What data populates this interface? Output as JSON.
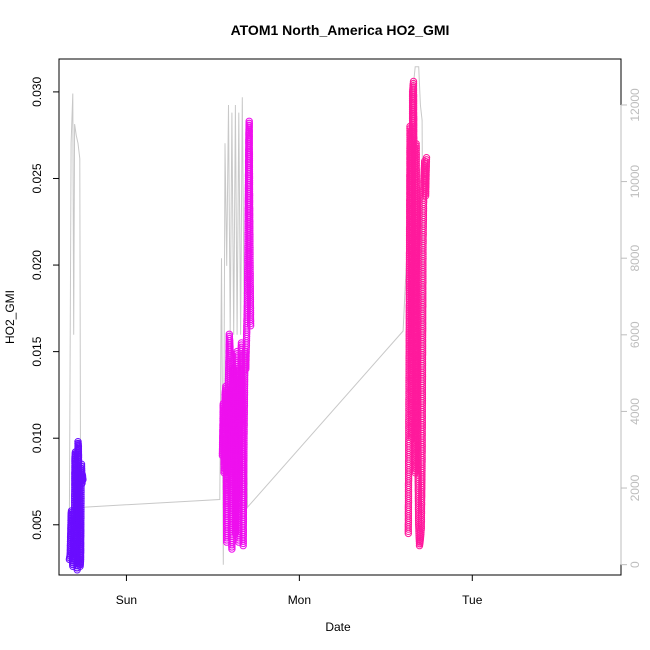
{
  "chart_data": {
    "type": "scatter",
    "title": "ATOM1 North_America HO2_GMI",
    "xlabel": "Date",
    "ylabel": "HO2_GMI",
    "x_ticks": [
      "Sun",
      "Mon",
      "Tue"
    ],
    "y_ticks": [
      "0.005",
      "0.010",
      "0.015",
      "0.020",
      "0.025",
      "0.030"
    ],
    "y_tick_values": [
      0.005,
      0.01,
      0.015,
      0.02,
      0.025,
      0.03
    ],
    "y2_ticks": [
      "0",
      "2000",
      "4000",
      "6000",
      "8000",
      "10000",
      "12000"
    ],
    "y2_tick_values": [
      0,
      2000,
      4000,
      6000,
      8000,
      10000,
      12000
    ],
    "xlim_days": [
      -0.39,
      2.86
    ],
    "ylim": [
      0.0021,
      0.0319
    ],
    "y2lim": [
      -270,
      13200
    ],
    "grid": false,
    "colors": {
      "purple": "#6a0dff",
      "magenta": "#ee10ee",
      "pink": "#ff1a9c",
      "altitude_line": "#c8c8c8",
      "axis": "#000000",
      "secondary_axis": "#bdbdbd"
    },
    "series": [
      {
        "color": "purple",
        "points": [
          [
            -0.33,
            0.003
          ],
          [
            -0.325,
            0.0033
          ],
          [
            -0.32,
            0.0055
          ],
          [
            -0.318,
            0.0058
          ],
          [
            -0.315,
            0.0035
          ],
          [
            -0.31,
            0.0026
          ],
          [
            -0.305,
            0.0029
          ],
          [
            -0.3,
            0.0045
          ],
          [
            -0.298,
            0.0088
          ],
          [
            -0.295,
            0.0092
          ],
          [
            -0.29,
            0.0068
          ],
          [
            -0.288,
            0.0035
          ],
          [
            -0.285,
            0.0024
          ],
          [
            -0.283,
            0.005
          ],
          [
            -0.28,
            0.0098
          ],
          [
            -0.278,
            0.0095
          ],
          [
            -0.275,
            0.0072
          ],
          [
            -0.27,
            0.0045
          ],
          [
            -0.268,
            0.0026
          ],
          [
            -0.265,
            0.003
          ],
          [
            -0.262,
            0.008
          ],
          [
            -0.26,
            0.0085
          ],
          [
            -0.257,
            0.0074
          ],
          [
            -0.255,
            0.0079
          ],
          [
            -0.252,
            0.0076
          ]
        ]
      },
      {
        "color": "magenta",
        "points": [
          [
            0.555,
            0.009
          ],
          [
            0.56,
            0.012
          ],
          [
            0.565,
            0.008
          ],
          [
            0.57,
            0.0125
          ],
          [
            0.575,
            0.013
          ],
          [
            0.58,
            0.004
          ],
          [
            0.585,
            0.011
          ],
          [
            0.59,
            0.0132
          ],
          [
            0.595,
            0.016
          ],
          [
            0.6,
            0.015
          ],
          [
            0.605,
            0.01
          ],
          [
            0.61,
            0.0036
          ],
          [
            0.615,
            0.0125
          ],
          [
            0.62,
            0.014
          ],
          [
            0.625,
            0.009
          ],
          [
            0.63,
            0.0045
          ],
          [
            0.635,
            0.011
          ],
          [
            0.64,
            0.015
          ],
          [
            0.645,
            0.012
          ],
          [
            0.65,
            0.004
          ],
          [
            0.655,
            0.01
          ],
          [
            0.66,
            0.013
          ],
          [
            0.665,
            0.0155
          ],
          [
            0.67,
            0.011
          ],
          [
            0.675,
            0.0038
          ],
          [
            0.68,
            0.01
          ],
          [
            0.685,
            0.015
          ],
          [
            0.69,
            0.014
          ],
          [
            0.695,
            0.016
          ],
          [
            0.7,
            0.018
          ],
          [
            0.705,
            0.024
          ],
          [
            0.708,
            0.0275
          ],
          [
            0.71,
            0.0283
          ],
          [
            0.712,
            0.024
          ],
          [
            0.715,
            0.02
          ],
          [
            0.718,
            0.0165
          ]
        ]
      },
      {
        "color": "pink",
        "points": [
          [
            1.63,
            0.0045
          ],
          [
            1.635,
            0.015
          ],
          [
            1.64,
            0.028
          ],
          [
            1.645,
            0.024
          ],
          [
            1.65,
            0.01
          ],
          [
            1.655,
            0.03
          ],
          [
            1.66,
            0.0306
          ],
          [
            1.665,
            0.02
          ],
          [
            1.67,
            0.008
          ],
          [
            1.675,
            0.027
          ],
          [
            1.68,
            0.019
          ],
          [
            1.685,
            0.01
          ],
          [
            1.69,
            0.005
          ],
          [
            1.695,
            0.0038
          ],
          [
            1.7,
            0.0042
          ],
          [
            1.705,
            0.0048
          ],
          [
            1.71,
            0.009
          ],
          [
            1.715,
            0.021
          ],
          [
            1.72,
            0.025
          ],
          [
            1.725,
            0.026
          ],
          [
            1.73,
            0.024
          ],
          [
            1.735,
            0.0262
          ]
        ]
      }
    ],
    "altitude_series": {
      "color": "altitude_line",
      "axis": "secondary",
      "points": [
        [
          -0.33,
          1300
        ],
        [
          -0.32,
          11000
        ],
        [
          -0.31,
          12300
        ],
        [
          -0.305,
          6000
        ],
        [
          -0.3,
          11500
        ],
        [
          -0.29,
          11200
        ],
        [
          -0.28,
          11000
        ],
        [
          -0.27,
          10600
        ],
        [
          -0.265,
          1500
        ],
        [
          -0.25,
          1500
        ],
        [
          0.54,
          1700
        ],
        [
          0.55,
          8000
        ],
        [
          0.56,
          0
        ],
        [
          0.57,
          11000
        ],
        [
          0.58,
          7800
        ],
        [
          0.59,
          12000
        ],
        [
          0.6,
          6000
        ],
        [
          0.61,
          11800
        ],
        [
          0.62,
          6000
        ],
        [
          0.63,
          12000
        ],
        [
          0.64,
          6000
        ],
        [
          0.65,
          11800
        ],
        [
          0.66,
          6000
        ],
        [
          0.67,
          12200
        ],
        [
          0.68,
          7000
        ],
        [
          0.69,
          5000
        ],
        [
          0.7,
          1500
        ],
        [
          1.6,
          6100
        ],
        [
          1.62,
          8000
        ],
        [
          1.63,
          11000
        ],
        [
          1.65,
          12100
        ],
        [
          1.67,
          13000
        ],
        [
          1.69,
          13000
        ],
        [
          1.7,
          12000
        ],
        [
          1.71,
          11600
        ],
        [
          1.72,
          1700
        ]
      ]
    },
    "scatter_area": [
      {
        "color": "purple",
        "x": [
          -0.34,
          -0.245
        ],
        "y": [
          0.0022,
          0.0099
        ]
      },
      {
        "color": "magenta",
        "x": [
          0.55,
          0.72
        ],
        "y": [
          0.0035,
          0.0284
        ]
      },
      {
        "color": "pink",
        "x": [
          1.625,
          1.74
        ],
        "y": [
          0.0038,
          0.0308
        ]
      }
    ]
  }
}
